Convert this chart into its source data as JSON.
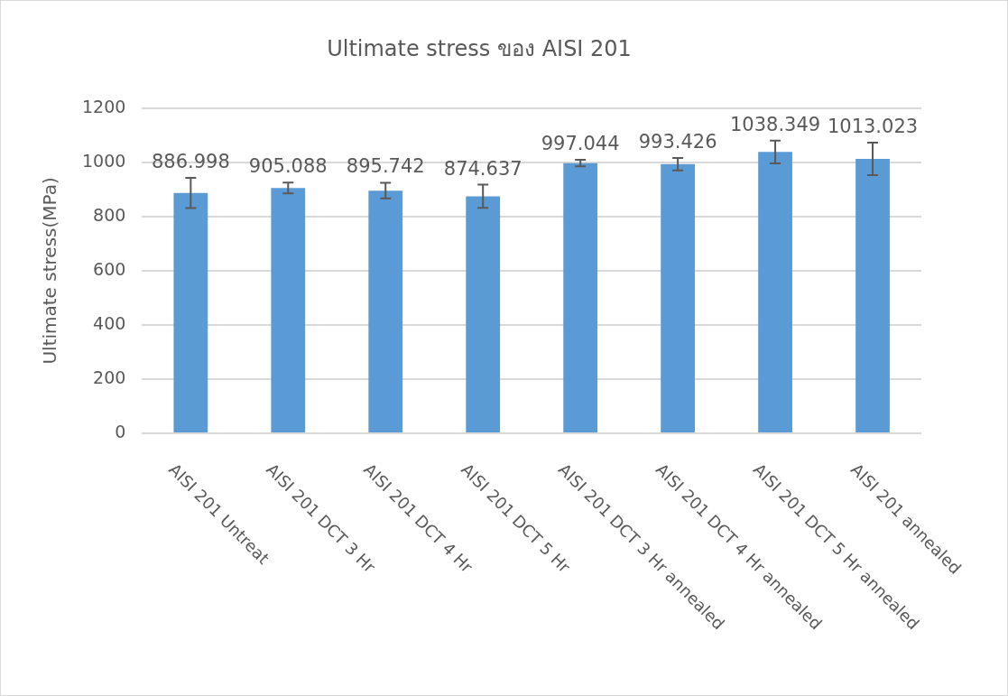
{
  "chart_data": {
    "type": "bar",
    "title": "Ultimate stress ของ AISI 201",
    "ylabel": "Ultimate stress(MPa)",
    "categories": [
      "AISI 201 Untreat",
      "AISI 201 DCT 3 Hr",
      "AISI 201 DCT 4 Hr",
      "AISI 201 DCT 5 Hr",
      "AISI 201 DCT 3 Hr annealed",
      "AISI 201 DCT 4 Hr annealed",
      "AISI 201 DCT 5 Hr annealed",
      "AISI 201 annealed"
    ],
    "values": [
      886.998,
      905.088,
      895.742,
      874.637,
      997.044,
      993.426,
      1038.349,
      1013.023
    ],
    "errors": [
      56,
      20,
      29,
      43,
      12,
      23,
      42,
      60
    ],
    "color": "#5b9bd5",
    "ylim": [
      0,
      1200
    ],
    "yticks": [
      0,
      200,
      400,
      600,
      800,
      1000,
      1200
    ],
    "grid": "y",
    "data_labels": true,
    "legend": false
  }
}
